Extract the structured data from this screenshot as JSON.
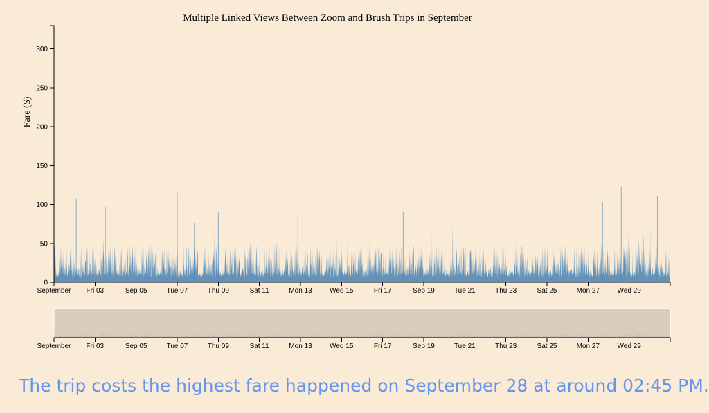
{
  "chart_data": {
    "type": "area",
    "title": "Multiple Linked Views Between Zoom and Brush Trips in September",
    "ylabel": "Fare ($)",
    "xlabel": "",
    "ylim": [
      0,
      330
    ],
    "x_domain": [
      "2021-09-01",
      "2021-10-01"
    ],
    "y_ticks": [
      0,
      50,
      100,
      150,
      200,
      250,
      300
    ],
    "x_tick_labels": [
      "September",
      "Fri 03",
      "Sep 05",
      "Tue 07",
      "Thu 09",
      "Sat 11",
      "Mon 13",
      "Wed 15",
      "Fri 17",
      "Sep 19",
      "Tue 21",
      "Thu 23",
      "Sat 25",
      "Mon 27",
      "Wed 29"
    ],
    "series_color": "#4682b4",
    "brush_color": "#d3c7b9",
    "spikes": [
      {
        "x": "2021-09-02 02:00",
        "y": 108
      },
      {
        "x": "2021-09-03 12:00",
        "y": 97
      },
      {
        "x": "2021-09-07 00:00",
        "y": 115
      },
      {
        "x": "2021-09-07 20:00",
        "y": 76
      },
      {
        "x": "2021-09-09 00:00",
        "y": 90
      },
      {
        "x": "2021-09-12 21:00",
        "y": 88
      },
      {
        "x": "2021-09-18 00:00",
        "y": 90
      },
      {
        "x": "2021-09-27 17:00",
        "y": 103
      },
      {
        "x": "2021-09-28 14:45",
        "y": 122
      },
      {
        "x": "2021-09-30 09:00",
        "y": 111
      }
    ],
    "grid": false,
    "legend": "none"
  },
  "caption": "The trip costs the highest fare happened on September 28 at around 02:45 PM."
}
